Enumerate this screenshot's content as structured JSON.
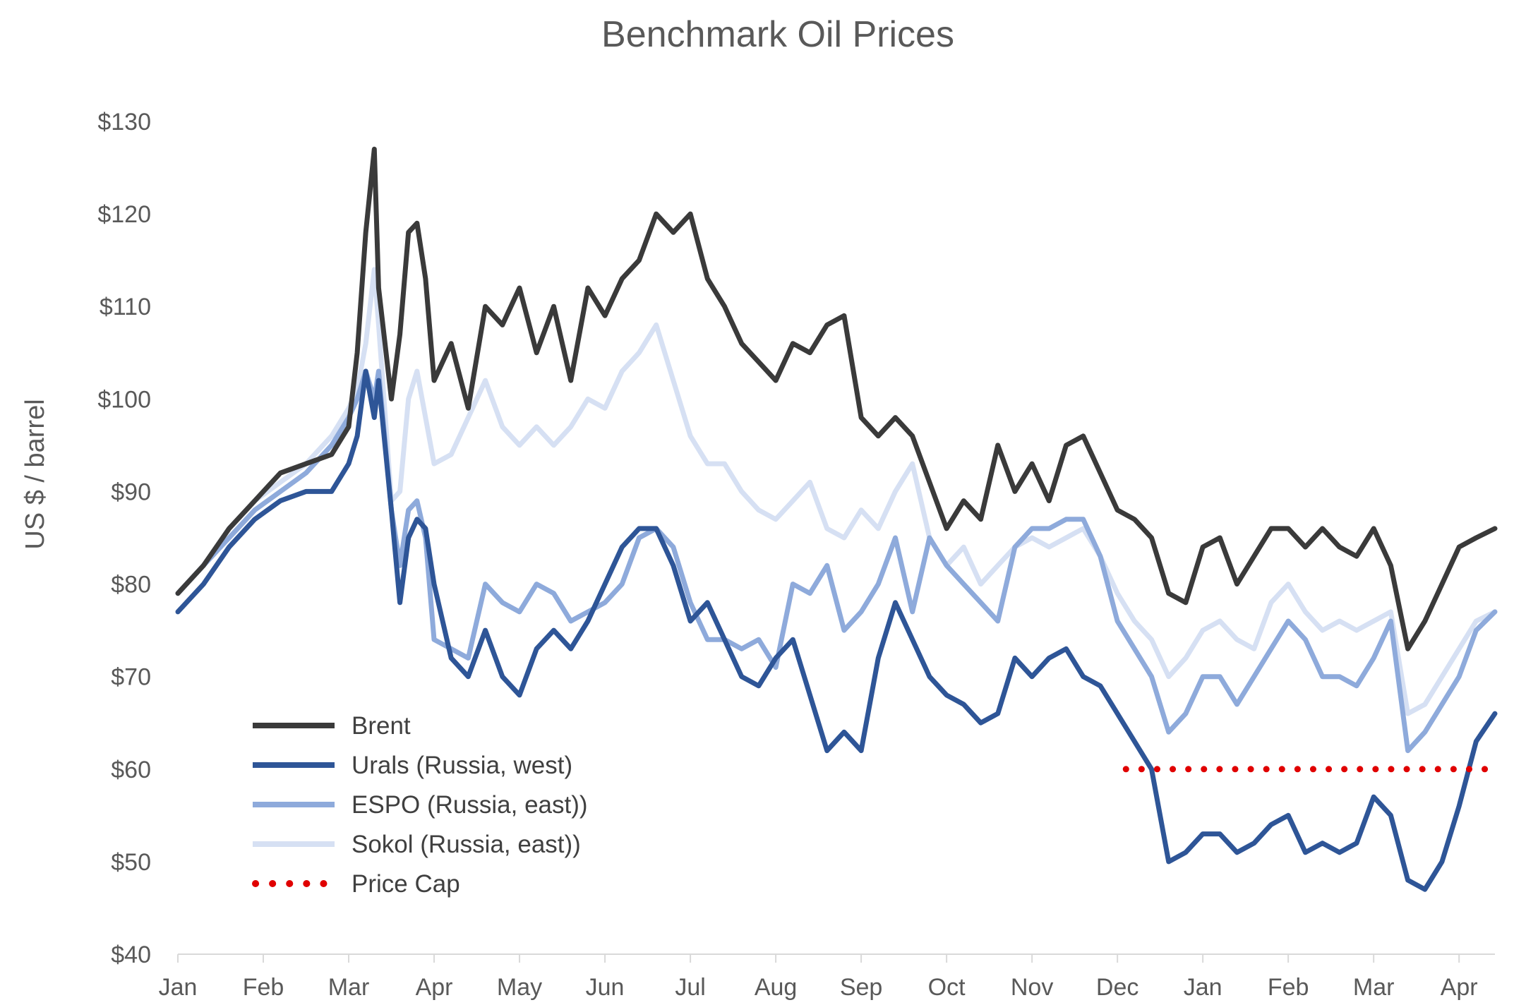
{
  "chart_data": {
    "type": "line",
    "title": "Benchmark Oil Prices",
    "ylabel": "US $ / barrel",
    "xlabel": "",
    "ylim": [
      40,
      130
    ],
    "y_ticks": [
      40,
      50,
      60,
      70,
      80,
      90,
      100,
      110,
      120,
      130
    ],
    "y_tick_labels": [
      "$40",
      "$50",
      "$60",
      "$70",
      "$80",
      "$90",
      "$100",
      "$110",
      "$120",
      "$130"
    ],
    "x_month_index_range": [
      0,
      15.42
    ],
    "x_tick_labels": [
      "Jan",
      "Feb",
      "Mar",
      "Apr",
      "May",
      "Jun",
      "Jul",
      "Aug",
      "Sep",
      "Oct",
      "Nov",
      "Dec",
      "Jan",
      "Feb",
      "Mar",
      "Apr"
    ],
    "grid": false,
    "legend_position": "bottom-left",
    "series": [
      {
        "name": "Brent",
        "color": "#3a3a3a",
        "style": "solid",
        "x": [
          0,
          0.3,
          0.6,
          0.9,
          1.2,
          1.5,
          1.8,
          2.0,
          2.1,
          2.2,
          2.3,
          2.35,
          2.5,
          2.6,
          2.7,
          2.8,
          2.9,
          3.0,
          3.2,
          3.4,
          3.6,
          3.8,
          4.0,
          4.2,
          4.4,
          4.6,
          4.8,
          5.0,
          5.2,
          5.4,
          5.6,
          5.8,
          6.0,
          6.2,
          6.4,
          6.6,
          6.8,
          7.0,
          7.2,
          7.4,
          7.6,
          7.8,
          8.0,
          8.2,
          8.4,
          8.6,
          8.8,
          9.0,
          9.2,
          9.4,
          9.6,
          9.8,
          10.0,
          10.2,
          10.4,
          10.6,
          10.8,
          11.0,
          11.2,
          11.4,
          11.6,
          11.8,
          12.0,
          12.2,
          12.4,
          12.6,
          12.8,
          13.0,
          13.2,
          13.4,
          13.6,
          13.8,
          14.0,
          14.2,
          14.4,
          14.6,
          14.8,
          15.0,
          15.2,
          15.42
        ],
        "values": [
          79,
          82,
          86,
          89,
          92,
          93,
          94,
          97,
          105,
          118,
          127,
          112,
          100,
          107,
          118,
          119,
          113,
          102,
          106,
          99,
          110,
          108,
          112,
          105,
          110,
          102,
          112,
          109,
          113,
          115,
          120,
          118,
          120,
          113,
          110,
          106,
          104,
          102,
          106,
          105,
          108,
          109,
          98,
          96,
          98,
          96,
          91,
          86,
          89,
          87,
          95,
          90,
          93,
          89,
          95,
          96,
          92,
          88,
          87,
          85,
          79,
          78,
          84,
          85,
          80,
          83,
          86,
          86,
          84,
          86,
          84,
          83,
          86,
          82,
          73,
          76,
          80,
          84,
          85,
          86
        ]
      },
      {
        "name": "Urals (Russia, west)",
        "color": "#2e5597",
        "style": "solid",
        "x": [
          0,
          0.3,
          0.6,
          0.9,
          1.2,
          1.5,
          1.8,
          2.0,
          2.1,
          2.2,
          2.3,
          2.35,
          2.5,
          2.6,
          2.7,
          2.8,
          2.9,
          3.0,
          3.2,
          3.4,
          3.6,
          3.8,
          4.0,
          4.2,
          4.4,
          4.6,
          4.8,
          5.0,
          5.2,
          5.4,
          5.6,
          5.8,
          6.0,
          6.2,
          6.4,
          6.6,
          6.8,
          7.0,
          7.2,
          7.4,
          7.6,
          7.8,
          8.0,
          8.2,
          8.4,
          8.6,
          8.8,
          9.0,
          9.2,
          9.4,
          9.6,
          9.8,
          10.0,
          10.2,
          10.4,
          10.6,
          10.8,
          11.0,
          11.2,
          11.4,
          11.6,
          11.8,
          12.0,
          12.2,
          12.4,
          12.6,
          12.8,
          13.0,
          13.2,
          13.4,
          13.6,
          13.8,
          14.0,
          14.2,
          14.4,
          14.6,
          14.8,
          15.0,
          15.2,
          15.42
        ],
        "values": [
          77,
          80,
          84,
          87,
          89,
          90,
          90,
          93,
          96,
          103,
          98,
          102,
          88,
          78,
          85,
          87,
          86,
          80,
          72,
          70,
          75,
          70,
          68,
          73,
          75,
          73,
          76,
          80,
          84,
          86,
          86,
          82,
          76,
          78,
          74,
          70,
          69,
          72,
          74,
          68,
          62,
          64,
          62,
          72,
          78,
          74,
          70,
          68,
          67,
          65,
          66,
          72,
          70,
          72,
          73,
          70,
          69,
          66,
          63,
          60,
          50,
          51,
          53,
          53,
          51,
          52,
          54,
          55,
          51,
          52,
          51,
          52,
          57,
          55,
          48,
          47,
          50,
          56,
          63,
          66
        ]
      },
      {
        "name": "ESPO (Russia, east))",
        "color": "#8eaadb",
        "style": "solid",
        "x": [
          0,
          0.3,
          0.6,
          0.9,
          1.2,
          1.5,
          1.8,
          2.0,
          2.1,
          2.2,
          2.3,
          2.35,
          2.5,
          2.6,
          2.7,
          2.8,
          2.9,
          3.0,
          3.2,
          3.4,
          3.6,
          3.8,
          4.0,
          4.2,
          4.4,
          4.6,
          4.8,
          5.0,
          5.2,
          5.4,
          5.6,
          5.8,
          6.0,
          6.2,
          6.4,
          6.6,
          6.8,
          7.0,
          7.2,
          7.4,
          7.6,
          7.8,
          8.0,
          8.2,
          8.4,
          8.6,
          8.8,
          9.0,
          9.2,
          9.4,
          9.6,
          9.8,
          10.0,
          10.2,
          10.4,
          10.6,
          10.8,
          11.0,
          11.2,
          11.4,
          11.6,
          11.8,
          12.0,
          12.2,
          12.4,
          12.6,
          12.8,
          13.0,
          13.2,
          13.4,
          13.6,
          13.8,
          14.0,
          14.2,
          14.4,
          14.6,
          14.8,
          15.0,
          15.2,
          15.42
        ],
        "values": [
          79,
          82,
          85,
          88,
          90,
          92,
          95,
          98,
          100,
          103,
          100,
          103,
          88,
          82,
          88,
          89,
          85,
          74,
          73,
          72,
          80,
          78,
          77,
          80,
          79,
          76,
          77,
          78,
          80,
          85,
          86,
          84,
          78,
          74,
          74,
          73,
          74,
          71,
          80,
          79,
          82,
          75,
          77,
          80,
          85,
          77,
          85,
          82,
          80,
          78,
          76,
          84,
          86,
          86,
          87,
          87,
          83,
          76,
          73,
          70,
          64,
          66,
          70,
          70,
          67,
          70,
          73,
          76,
          74,
          70,
          70,
          69,
          72,
          76,
          62,
          64,
          67,
          70,
          75,
          77
        ]
      },
      {
        "name": "Sokol (Russia, east))",
        "color": "#d6e0f3",
        "style": "solid",
        "x": [
          0,
          0.3,
          0.6,
          0.9,
          1.2,
          1.5,
          1.8,
          2.0,
          2.1,
          2.2,
          2.3,
          2.35,
          2.5,
          2.6,
          2.7,
          2.8,
          2.9,
          3.0,
          3.2,
          3.4,
          3.6,
          3.8,
          4.0,
          4.2,
          4.4,
          4.6,
          4.8,
          5.0,
          5.2,
          5.4,
          5.6,
          5.8,
          6.0,
          6.2,
          6.4,
          6.6,
          6.8,
          7.0,
          7.2,
          7.4,
          7.6,
          7.8,
          8.0,
          8.2,
          8.4,
          8.6,
          8.8,
          9.0,
          9.2,
          9.4,
          9.6,
          9.8,
          10.0,
          10.2,
          10.4,
          10.6,
          10.8,
          11.0,
          11.2,
          11.4,
          11.6,
          11.8,
          12.0,
          12.2,
          12.4,
          12.6,
          12.8,
          13.0,
          13.2,
          13.4,
          13.6,
          13.8,
          14.0,
          14.2,
          14.4,
          14.6,
          14.8,
          15.0,
          15.2,
          15.42
        ],
        "values": [
          79,
          82,
          86,
          89,
          91,
          93,
          96,
          99,
          101,
          106,
          114,
          108,
          89,
          90,
          100,
          103,
          98,
          93,
          94,
          98,
          102,
          97,
          95,
          97,
          95,
          97,
          100,
          99,
          103,
          105,
          108,
          102,
          96,
          93,
          93,
          90,
          88,
          87,
          89,
          91,
          86,
          85,
          88,
          86,
          90,
          93,
          85,
          82,
          84,
          80,
          82,
          84,
          85,
          84,
          85,
          86,
          83,
          79,
          76,
          74,
          70,
          72,
          75,
          76,
          74,
          73,
          78,
          80,
          77,
          75,
          76,
          75,
          76,
          77,
          66,
          67,
          70,
          73,
          76,
          77
        ]
      },
      {
        "name": "Price Cap",
        "color": "#e00000",
        "style": "dotted",
        "x": [
          11.1,
          15.42
        ],
        "values": [
          60,
          60
        ]
      }
    ]
  }
}
